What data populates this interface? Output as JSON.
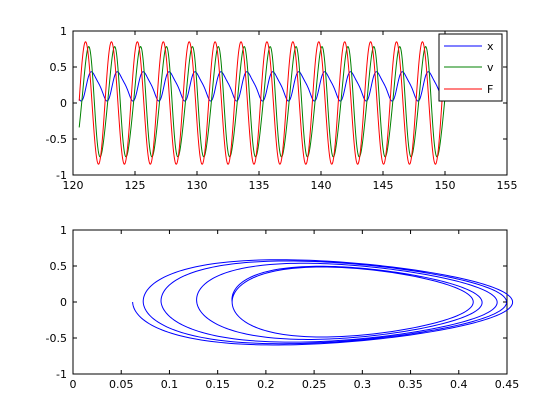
{
  "chart_data": [
    {
      "type": "line",
      "xlim": [
        120,
        155
      ],
      "ylim": [
        -1,
        1
      ],
      "xticks": [
        "120",
        "125",
        "130",
        "135",
        "140",
        "145",
        "150",
        "155"
      ],
      "yticks": [
        "-1",
        "-0.5",
        "0",
        "0.5",
        "1"
      ],
      "grid": false,
      "legend_position": "top-right",
      "x_range_of_data": [
        120.5,
        150
      ],
      "series": [
        {
          "name": "x",
          "color": "#0000ff",
          "description": "oscillation centered ~0.25, amplitude ~0.2, period ~2.1",
          "offset": 0.24,
          "amplitude": 0.19,
          "period": 2.09,
          "phase": 0.4
        },
        {
          "name": "v",
          "color": "#008000",
          "description": "oscillation amplitude ~0.75, period ~2.1",
          "offset": 0.0,
          "amplitude": 0.75,
          "period": 2.09,
          "phase": 1.6
        },
        {
          "name": "F",
          "color": "#ff0000",
          "description": "cosine forcing amplitude ~0.85, period ~2.1",
          "offset": 0.0,
          "amplitude": 0.85,
          "period": 2.09,
          "phase": 2.2
        }
      ]
    },
    {
      "type": "line",
      "xlim": [
        0,
        0.45
      ],
      "ylim": [
        -1,
        1
      ],
      "xticks": [
        "0",
        "0.05",
        "0.1",
        "0.15",
        "0.2",
        "0.25",
        "0.3",
        "0.35",
        "0.4",
        "0.45"
      ],
      "yticks": [
        "-1",
        "-0.5",
        "0",
        "0.5",
        "1"
      ],
      "grid": false,
      "series": [
        {
          "color": "#0000ff",
          "description": "phase portrait (x vs v) nested loops",
          "loops": [
            {
              "x_min": 0.038,
              "x_max": 0.435,
              "v_max": 0.68
            },
            {
              "x_min": 0.05,
              "x_max": 0.43,
              "v_max": 0.66
            },
            {
              "x_min": 0.07,
              "x_max": 0.425,
              "v_max": 0.64
            },
            {
              "x_min": 0.11,
              "x_max": 0.415,
              "v_max": 0.6
            },
            {
              "x_min": 0.15,
              "x_max": 0.4,
              "v_max": 0.55
            }
          ]
        }
      ]
    }
  ]
}
